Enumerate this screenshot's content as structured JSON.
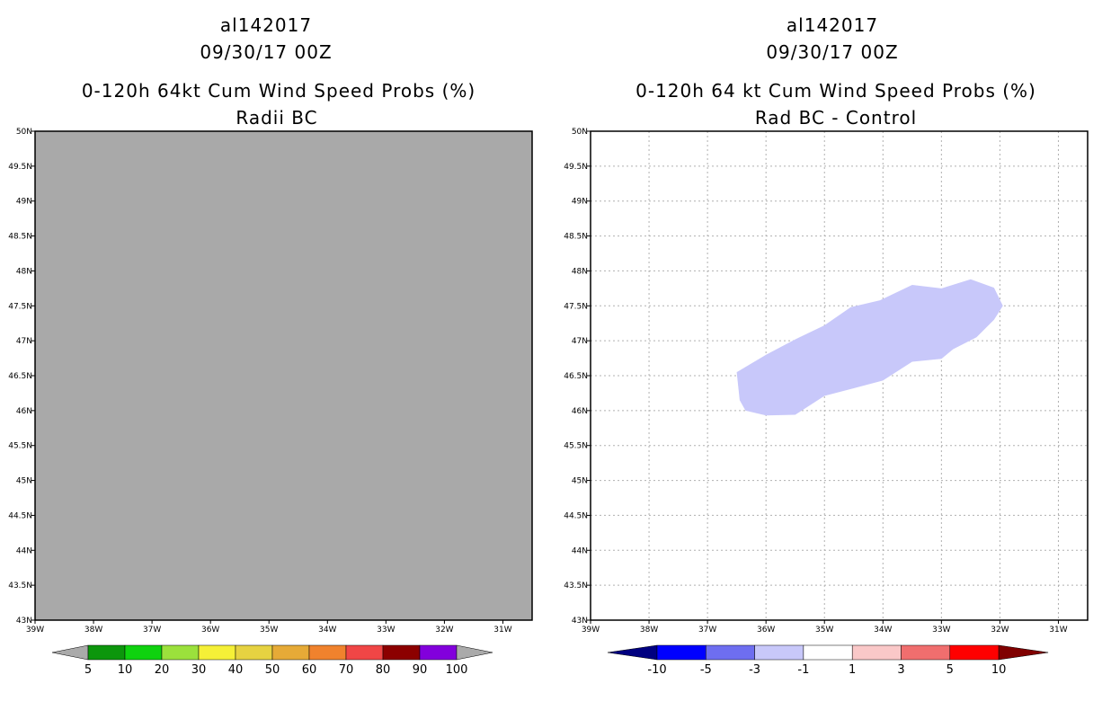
{
  "left_panel": {
    "storm_id": "al142017",
    "datetime": "09/30/17 00Z",
    "title": "0-120h 64kt Cum Wind Speed Probs (%)",
    "subtitle": "Radii BC"
  },
  "right_panel": {
    "storm_id": "al142017",
    "datetime": "09/30/17 00Z",
    "title": "0-120h 64 kt Cum Wind Speed Probs (%)",
    "subtitle": "Rad BC - Control"
  },
  "colors": {
    "land_fill": "#a9a9a9",
    "diff_fill": "#c8c8fa",
    "grid": "#b0b0b0"
  },
  "chart_data": [
    {
      "type": "heatmap",
      "name": "left",
      "xlabel": "",
      "ylabel": "",
      "xlim": [
        -39,
        -30.5
      ],
      "ylim": [
        43,
        50
      ],
      "x_ticks": [
        -39,
        -38,
        -37,
        -36,
        -35,
        -34,
        -33,
        -32,
        -31
      ],
      "x_tick_labels": [
        "39W",
        "38W",
        "37W",
        "36W",
        "35W",
        "34W",
        "33W",
        "32W",
        "31W"
      ],
      "y_ticks": [
        43,
        43.5,
        44,
        44.5,
        45,
        45.5,
        46,
        46.5,
        47,
        47.5,
        48,
        48.5,
        49,
        49.5,
        50
      ],
      "y_tick_labels": [
        "43N",
        "43.5N",
        "44N",
        "44.5N",
        "45N",
        "45.5N",
        "46N",
        "46.5N",
        "47N",
        "47.5N",
        "48N",
        "48.5N",
        "49N",
        "49.5N",
        "50N"
      ],
      "grid": false,
      "field": "uniform gray (no data)",
      "colorbar": {
        "labels": [
          "5",
          "10",
          "20",
          "30",
          "40",
          "50",
          "60",
          "70",
          "80",
          "90",
          "100"
        ],
        "colors": [
          "#aaaaaa",
          "#0c960c",
          "#0fd20f",
          "#9be13c",
          "#f5f037",
          "#e6d241",
          "#e6aa37",
          "#f0822d",
          "#f04646",
          "#8c0000",
          "#8200dc",
          "#aaaaaa"
        ]
      }
    },
    {
      "type": "heatmap",
      "name": "right",
      "xlabel": "",
      "ylabel": "",
      "xlim": [
        -39,
        -30.5
      ],
      "ylim": [
        43,
        50
      ],
      "x_ticks": [
        -39,
        -38,
        -37,
        -36,
        -35,
        -34,
        -33,
        -32,
        -31
      ],
      "x_tick_labels": [
        "39W",
        "38W",
        "37W",
        "36W",
        "35W",
        "34W",
        "33W",
        "32W",
        "31W"
      ],
      "y_ticks": [
        43,
        43.5,
        44,
        44.5,
        45,
        45.5,
        46,
        46.5,
        47,
        47.5,
        48,
        48.5,
        49,
        49.5,
        50
      ],
      "y_tick_labels": [
        "43N",
        "43.5N",
        "44N",
        "44.5N",
        "45N",
        "45.5N",
        "46N",
        "46.5N",
        "47N",
        "47.5N",
        "48N",
        "48.5N",
        "49N",
        "49.5N",
        "50N"
      ],
      "grid": true,
      "region": {
        "category": "-3 to -1",
        "polygon_lonlat": [
          [
            -36.5,
            46.55
          ],
          [
            -36.0,
            46.8
          ],
          [
            -35.5,
            47.02
          ],
          [
            -35.0,
            47.22
          ],
          [
            -34.55,
            47.48
          ],
          [
            -34.05,
            47.58
          ],
          [
            -33.5,
            47.8
          ],
          [
            -33.0,
            47.75
          ],
          [
            -32.5,
            47.88
          ],
          [
            -32.1,
            47.76
          ],
          [
            -31.95,
            47.5
          ],
          [
            -32.1,
            47.3
          ],
          [
            -32.4,
            47.05
          ],
          [
            -32.8,
            46.88
          ],
          [
            -33.0,
            46.74
          ],
          [
            -33.5,
            46.7
          ],
          [
            -34.0,
            46.43
          ],
          [
            -34.5,
            46.32
          ],
          [
            -35.0,
            46.21
          ],
          [
            -35.5,
            45.94
          ],
          [
            -36.0,
            45.93
          ],
          [
            -36.35,
            46.0
          ],
          [
            -36.45,
            46.15
          ]
        ]
      },
      "colorbar": {
        "labels": [
          "-10",
          "-5",
          "-3",
          "-1",
          "1",
          "3",
          "5",
          "10"
        ],
        "colors": [
          "#000080",
          "#0000ff",
          "#6e6ef0",
          "#c8c8fa",
          "#ffffff",
          "#fac8c8",
          "#f06e6e",
          "#ff0000",
          "#800000"
        ]
      }
    }
  ]
}
